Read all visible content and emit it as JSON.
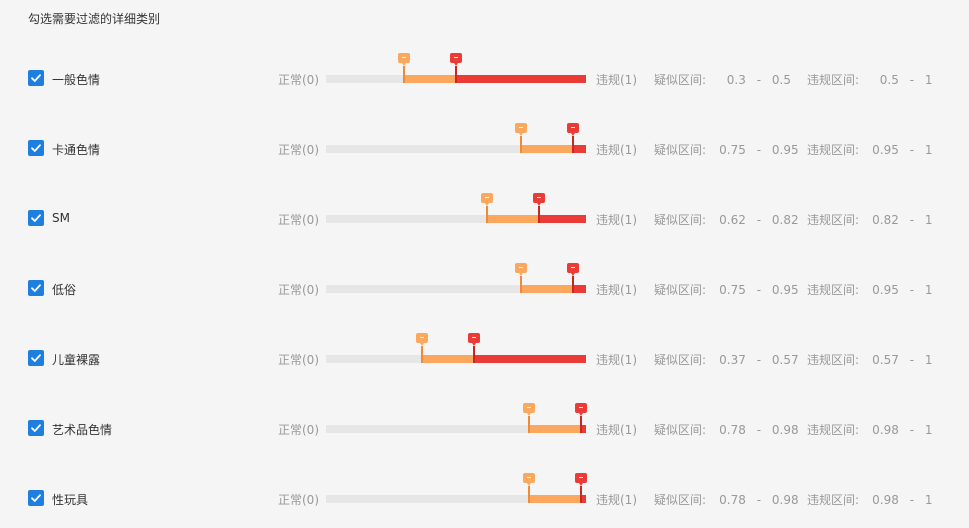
{
  "header": {
    "title": "勾选需要过滤的详细类别"
  },
  "labels": {
    "normal": "正常(0)",
    "violation": "违规(1)",
    "suspect_range": "疑似区间:",
    "violation_range": "违规区间:",
    "dash": "-"
  },
  "colors": {
    "checkbox": "#1f7fe0",
    "track": "#e6e6e6",
    "suspect": "#fba85e",
    "violation": "#eb3b36"
  },
  "icons": {
    "checkbox": "check-icon",
    "handle": "slider-handle-icon"
  },
  "rows": [
    {
      "name": "一般色情",
      "checked": true,
      "suspect_low": "0.3",
      "suspect_high": "0.5",
      "violation_low": "0.5",
      "violation_high": "1"
    },
    {
      "name": "卡通色情",
      "checked": true,
      "suspect_low": "0.75",
      "suspect_high": "0.95",
      "violation_low": "0.95",
      "violation_high": "1"
    },
    {
      "name": "SM",
      "checked": true,
      "suspect_low": "0.62",
      "suspect_high": "0.82",
      "violation_low": "0.82",
      "violation_high": "1"
    },
    {
      "name": "低俗",
      "checked": true,
      "suspect_low": "0.75",
      "suspect_high": "0.95",
      "violation_low": "0.95",
      "violation_high": "1"
    },
    {
      "name": "儿童裸露",
      "checked": true,
      "suspect_low": "0.37",
      "suspect_high": "0.57",
      "violation_low": "0.57",
      "violation_high": "1"
    },
    {
      "name": "艺术品色情",
      "checked": true,
      "suspect_low": "0.78",
      "suspect_high": "0.98",
      "violation_low": "0.98",
      "violation_high": "1"
    },
    {
      "name": "性玩具",
      "checked": true,
      "suspect_low": "0.78",
      "suspect_high": "0.98",
      "violation_low": "0.98",
      "violation_high": "1"
    }
  ]
}
